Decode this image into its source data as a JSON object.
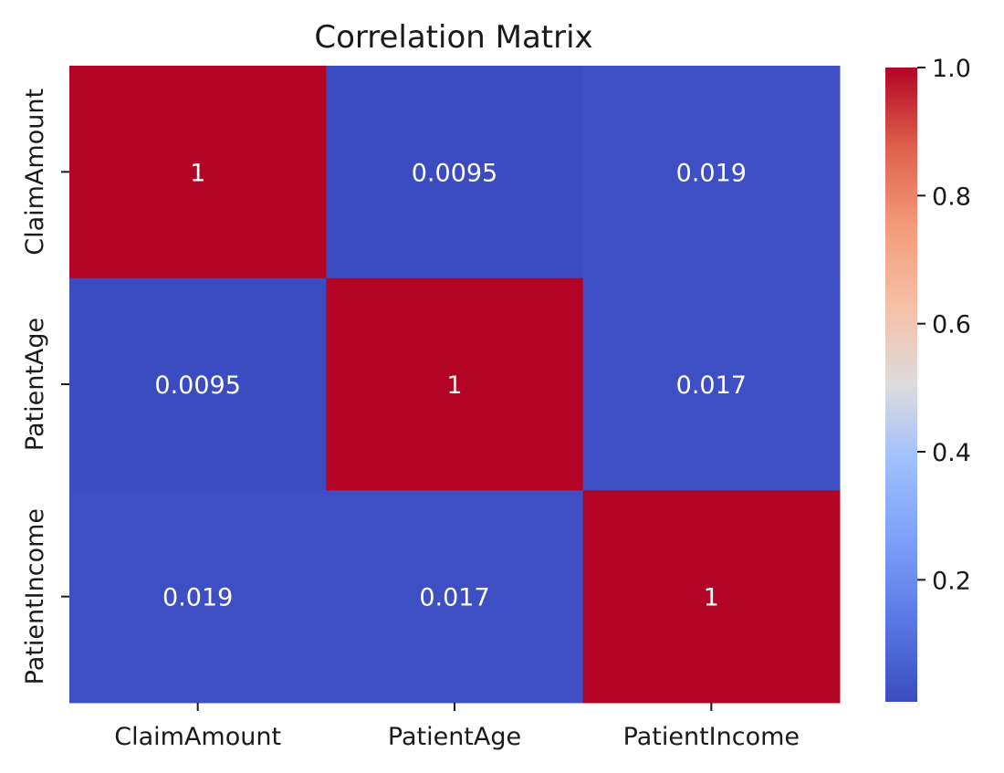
{
  "chart_data": {
    "type": "heatmap",
    "title": "Correlation Matrix",
    "x_categories": [
      "ClaimAmount",
      "PatientAge",
      "PatientIncome"
    ],
    "y_categories": [
      "ClaimAmount",
      "PatientAge",
      "PatientIncome"
    ],
    "values": [
      [
        1,
        0.0095,
        0.019
      ],
      [
        0.0095,
        1,
        0.017
      ],
      [
        0.019,
        0.017,
        1
      ]
    ],
    "annotations": [
      [
        "1",
        "0.0095",
        "0.019"
      ],
      [
        "0.0095",
        "1",
        "0.017"
      ],
      [
        "0.019",
        "0.017",
        "1"
      ]
    ],
    "colormap": "coolwarm",
    "color_range": [
      0.0095,
      1
    ],
    "colorbar_ticks": [
      0.2,
      0.4,
      0.6,
      0.8,
      1.0
    ],
    "colorbar_tick_labels": [
      "0.2",
      "0.4",
      "0.6",
      "0.8",
      "1.0"
    ],
    "colorbar_placement": "right"
  }
}
